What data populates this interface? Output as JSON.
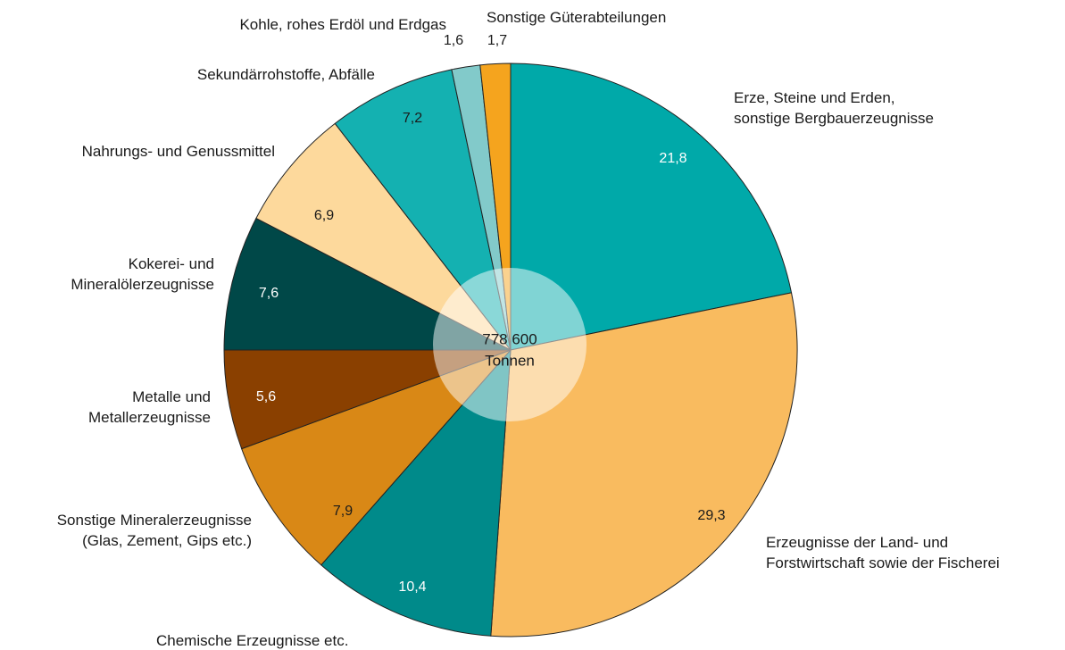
{
  "chart_data": {
    "type": "pie",
    "categories": [
      "Erze, Steine und Erden,\nsonstige Bergbauerzeugnisse",
      "Erzeugnisse der Land- und\nForstwirtschaft sowie der Fischerei",
      "Chemische Erzeugnisse etc.",
      "Sonstige Mineralerzeugnisse\n(Glas, Zement, Gips etc.)",
      "Metalle und\nMetallerzeugnisse",
      "Kokerei- und\nMineralölerzeugnisse",
      "Nahrungs- und Genussmittel",
      "Sekundärrohstoffe, Abfälle",
      "Kohle, rohes Erdöl und Erdgas",
      "Sonstige Güterabteilungen"
    ],
    "values": [
      21.8,
      29.3,
      10.4,
      7.9,
      5.6,
      7.6,
      6.9,
      7.2,
      1.6,
      1.7
    ],
    "value_labels": [
      "21,8",
      "29,3",
      "10,4",
      "7,9",
      "5,6",
      "7,6",
      "6,9",
      "7,2",
      "1,6",
      "1,7"
    ],
    "colors": [
      "#00a9a9",
      "#f9bb5f",
      "#008a8a",
      "#d98816",
      "#8a4000",
      "#004848",
      "#fdd99c",
      "#14b1b1",
      "#82caca",
      "#f5a41e"
    ],
    "center_label": "778 600",
    "center_unit": "Tonnen"
  }
}
